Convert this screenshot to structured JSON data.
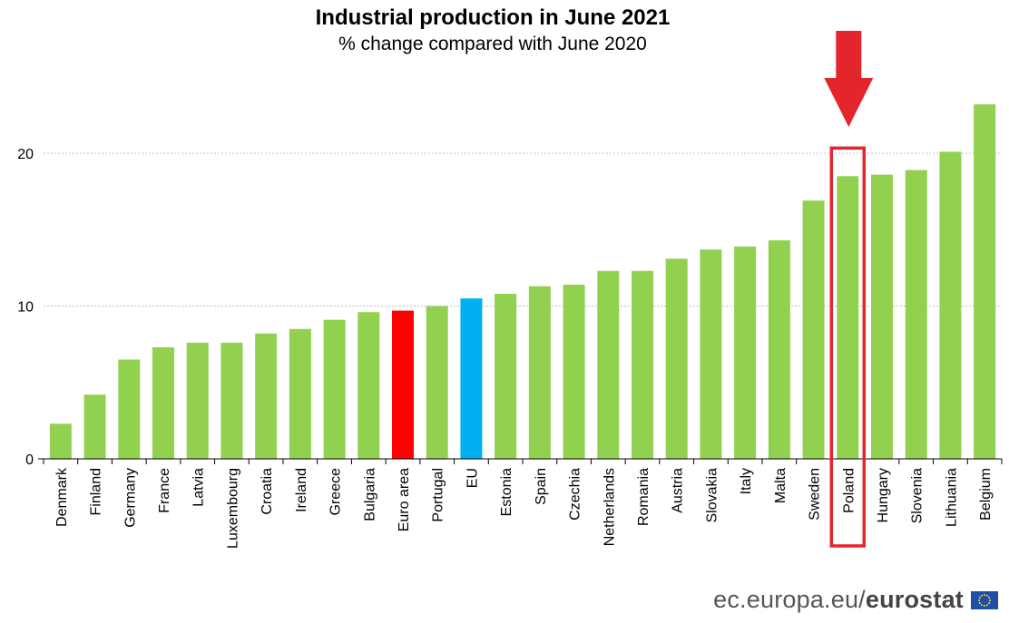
{
  "chart_data": {
    "type": "bar",
    "title": "Industrial production in June 2021",
    "subtitle": "% change compared with June 2020",
    "categories": [
      "Denmark",
      "Finland",
      "Germany",
      "France",
      "Latvia",
      "Luxembourg",
      "Croatia",
      "Ireland",
      "Greece",
      "Bulgaria",
      "Euro area",
      "Portugal",
      "EU",
      "Estonia",
      "Spain",
      "Czechia",
      "Netherlands",
      "Romania",
      "Austria",
      "Slovakia",
      "Italy",
      "Malta",
      "Sweden",
      "Poland",
      "Hungary",
      "Slovenia",
      "Lithuania",
      "Belgium"
    ],
    "values": [
      2.3,
      4.2,
      6.5,
      7.3,
      7.6,
      7.6,
      8.2,
      8.5,
      9.1,
      9.6,
      9.7,
      10.0,
      10.5,
      10.8,
      11.3,
      11.4,
      12.3,
      12.3,
      13.1,
      13.7,
      13.9,
      14.3,
      16.9,
      18.5,
      18.6,
      18.9,
      20.1,
      23.2
    ],
    "ylim": [
      0,
      24
    ],
    "yticks": [
      0,
      10,
      20
    ],
    "xlabel": "",
    "ylabel": "",
    "highlight_category": "Poland",
    "colors": {
      "default": "#92d050",
      "euro_area": "#ff0000",
      "eu": "#00b0f0",
      "highlight": "#e3262b",
      "grid": "#bfbfbf"
    }
  },
  "footer": {
    "site": "ec.europa.eu/",
    "brand": "eurostat"
  }
}
